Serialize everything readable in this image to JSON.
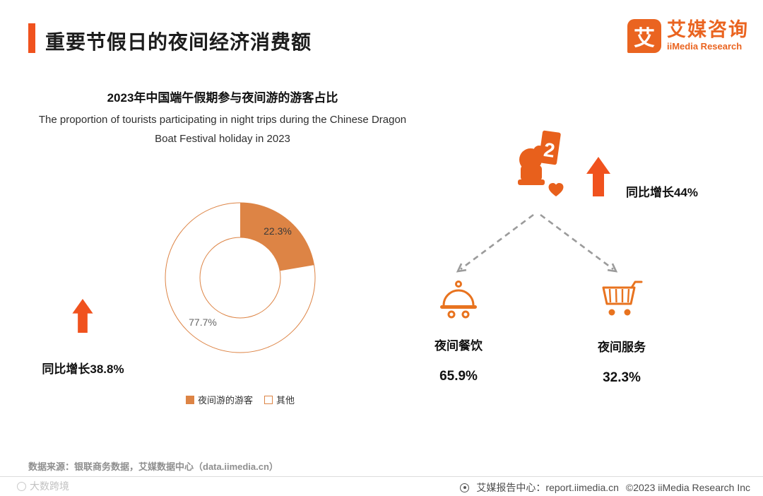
{
  "header": {
    "title": "重要节假日的夜间经济消费额",
    "accent_color": "#F0521E",
    "logo": {
      "mark": "艾",
      "name_cn": "艾媒咨询",
      "name_en": "iiMedia Research",
      "color": "#EA6420"
    }
  },
  "chart_data": {
    "type": "pie",
    "donut": true,
    "title": "2023年中国端午假期参与夜间游的游客占比",
    "subtitle_en_line1": "The proportion of tourists participating in night trips during the Chinese Dragon",
    "subtitle_en_line2": "Boat Festival holiday in 2023",
    "slices": [
      {
        "label": "夜间游的游客",
        "value": 22.3,
        "display": "22.3%",
        "color": "#DD8445"
      },
      {
        "label": "其他",
        "value": 77.7,
        "display": "77.7%",
        "color": "#FFFFFF"
      }
    ],
    "legend_position": "bottom",
    "growth_annotation": "同比增长38.8%"
  },
  "right_panel": {
    "growth_label": "同比增长44%",
    "card_glyph": "2",
    "items": [
      {
        "icon": "food-cloche-icon",
        "label": "夜间餐饮",
        "value": "65.9%"
      },
      {
        "icon": "shopping-cart-icon",
        "label": "夜间服务",
        "value": "32.3%"
      }
    ]
  },
  "source_note": "数据来源：银联商务数据，艾媒数据中心（data.iimedia.cn）",
  "footer": {
    "report_center": "艾媒报告中心：report.iimedia.cn",
    "copyright": "©2023  iiMedia Research  Inc",
    "watermark": "大数跨境"
  }
}
